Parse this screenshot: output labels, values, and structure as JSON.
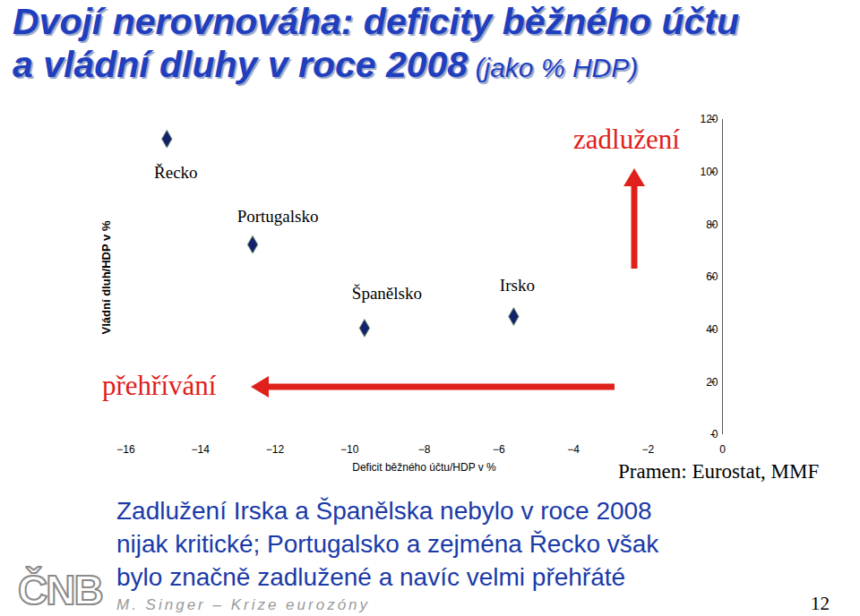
{
  "chart_data": {
    "type": "scatter",
    "title": [
      "Dvojí nerovnováha: deficity běžného účtu",
      "a vládní dluhy v roce 2008"
    ],
    "subtitle": "(jako % HDP)",
    "x_label": "Deficit běžného účtu/HDP v %",
    "y_label": "Vládní dluh/HDP v %",
    "x": [
      -14.9,
      -12.6,
      -9.6,
      -5.6
    ],
    "values": [
      112.6,
      72.4,
      40.6,
      45
    ],
    "point_labels": [
      "Řecko",
      "Portugalsko",
      "Španělsko",
      "Irsko"
    ],
    "color": "#13226b",
    "marker": "diamond",
    "xlim": [
      -16,
      0
    ],
    "xticks": [
      -16,
      -14,
      -12,
      -10,
      -8,
      -6,
      -4,
      -2,
      0
    ],
    "ylim": [
      0,
      120
    ],
    "yticks": [
      0,
      20,
      40,
      60,
      80,
      100,
      120
    ],
    "annotations": [
      "zadlužení",
      "přehřívání"
    ],
    "source": "Pramen: Eurostat, MMF"
  },
  "caption": [
    "Zadlužení Irska a Španělska nebylo v roce 2008",
    "nijak kritické; Portugalsko a zejména Řecko však",
    "bylo značně zadlužené a navíc velmi přehřáté"
  ],
  "footer": "M. Singer – Krize eurozóny",
  "page_number": 12,
  "logo": "ČNB"
}
